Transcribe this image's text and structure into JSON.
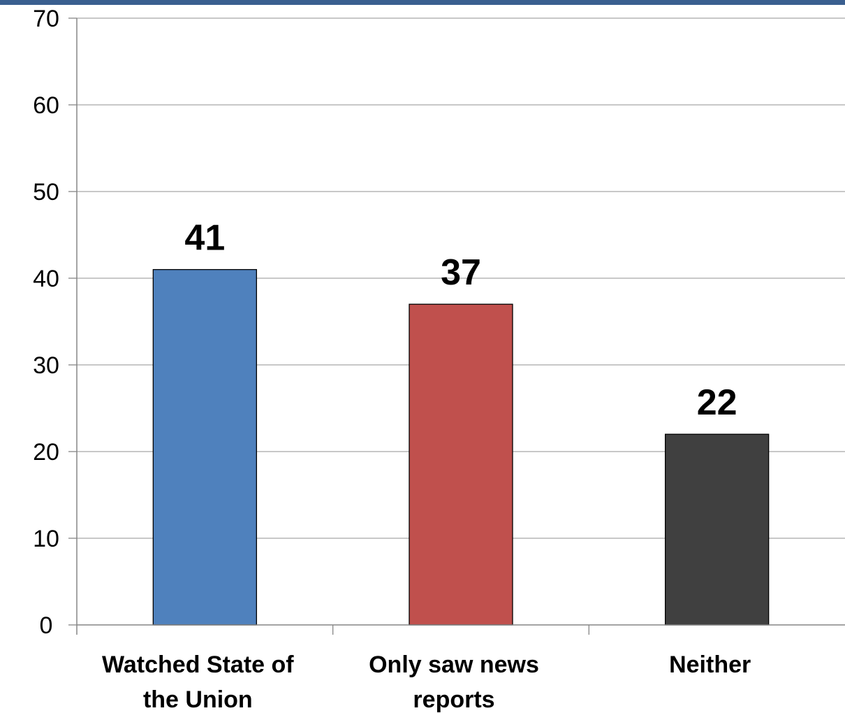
{
  "chart_data": {
    "type": "bar",
    "categories": [
      [
        "Watched State of",
        "the Union"
      ],
      [
        "Only saw news",
        "reports"
      ],
      [
        "Neither"
      ]
    ],
    "values": [
      41,
      37,
      22
    ],
    "value_labels": [
      "41",
      "37",
      "22"
    ],
    "colors": [
      "#4f81bd",
      "#c0504d",
      "#404040"
    ],
    "ylim": [
      0,
      70
    ],
    "yticks": [
      "0",
      "10",
      "20",
      "30",
      "40",
      "50",
      "60",
      "70"
    ],
    "grid": true,
    "title": "",
    "xlabel": "",
    "ylabel": ""
  },
  "colors": {
    "top_band": "#3a5f8f",
    "grid": "#a6a6a6",
    "axis": "#868686",
    "bar_border": "#000000"
  }
}
